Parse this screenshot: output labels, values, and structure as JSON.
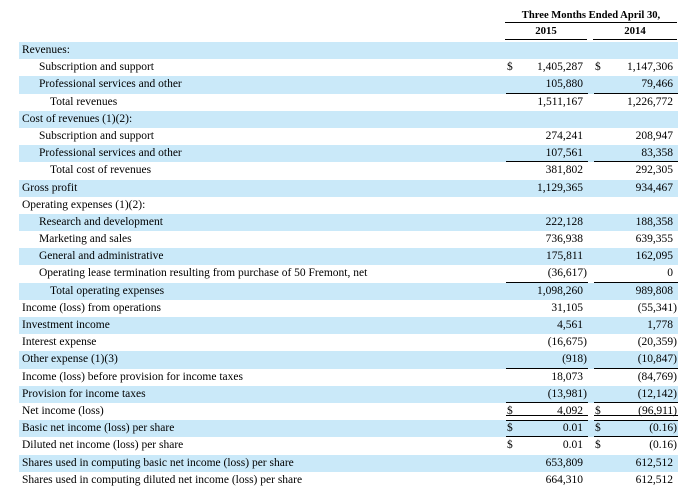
{
  "table": {
    "period_header": "Three Months Ended April 30,",
    "year_columns": [
      "2015",
      "2014"
    ],
    "dollar_sign": "$",
    "highlight_color": "#cae9f9",
    "rule_color": "#000000",
    "rows": [
      {
        "label": "Revenues:",
        "indent": 0,
        "shaded": true,
        "dollar": false,
        "v2015": "",
        "v2014": "",
        "underline": "none"
      },
      {
        "label": "Subscription and support",
        "indent": 1,
        "shaded": false,
        "dollar": true,
        "v2015": "1,405,287",
        "v2014": "1,147,306",
        "underline": "none"
      },
      {
        "label": "Professional services and other",
        "indent": 1,
        "shaded": true,
        "dollar": false,
        "v2015": "105,880",
        "v2014": "79,466",
        "underline": "single"
      },
      {
        "label": "Total revenues",
        "indent": 2,
        "shaded": false,
        "dollar": false,
        "v2015": "1,511,167",
        "v2014": "1,226,772",
        "underline": "none"
      },
      {
        "label": "Cost of revenues (1)(2):",
        "indent": 0,
        "shaded": true,
        "dollar": false,
        "v2015": "",
        "v2014": "",
        "underline": "none"
      },
      {
        "label": "Subscription and support",
        "indent": 1,
        "shaded": false,
        "dollar": false,
        "v2015": "274,241",
        "v2014": "208,947",
        "underline": "none"
      },
      {
        "label": "Professional services and other",
        "indent": 1,
        "shaded": true,
        "dollar": false,
        "v2015": "107,561",
        "v2014": "83,358",
        "underline": "single"
      },
      {
        "label": "Total cost of revenues",
        "indent": 2,
        "shaded": false,
        "dollar": false,
        "v2015": "381,802",
        "v2014": "292,305",
        "underline": "none"
      },
      {
        "label": "Gross profit",
        "indent": 0,
        "shaded": true,
        "dollar": false,
        "v2015": "1,129,365",
        "v2014": "934,467",
        "underline": "none"
      },
      {
        "label": "Operating expenses (1)(2):",
        "indent": 0,
        "shaded": false,
        "dollar": false,
        "v2015": "",
        "v2014": "",
        "underline": "none"
      },
      {
        "label": "Research and development",
        "indent": 1,
        "shaded": true,
        "dollar": false,
        "v2015": "222,128",
        "v2014": "188,358",
        "underline": "none"
      },
      {
        "label": "Marketing and sales",
        "indent": 1,
        "shaded": false,
        "dollar": false,
        "v2015": "736,938",
        "v2014": "639,355",
        "underline": "none"
      },
      {
        "label": "General and administrative",
        "indent": 1,
        "shaded": true,
        "dollar": false,
        "v2015": "175,811",
        "v2014": "162,095",
        "underline": "none"
      },
      {
        "label": "Operating lease termination resulting from purchase of 50 Fremont, net",
        "indent": 1,
        "shaded": false,
        "dollar": false,
        "v2015": "(36,617)",
        "v2014": "0",
        "underline": "single"
      },
      {
        "label": "Total operating expenses",
        "indent": 2,
        "shaded": true,
        "dollar": false,
        "v2015": "1,098,260",
        "v2014": "989,808",
        "underline": "none"
      },
      {
        "label": "Income (loss) from operations",
        "indent": 0,
        "shaded": false,
        "dollar": false,
        "v2015": "31,105",
        "v2014": "(55,341)",
        "underline": "none"
      },
      {
        "label": "Investment income",
        "indent": 0,
        "shaded": true,
        "dollar": false,
        "v2015": "4,561",
        "v2014": "1,778",
        "underline": "none"
      },
      {
        "label": "Interest expense",
        "indent": 0,
        "shaded": false,
        "dollar": false,
        "v2015": "(16,675)",
        "v2014": "(20,359)",
        "underline": "none"
      },
      {
        "label": "Other expense (1)(3)",
        "indent": 0,
        "shaded": true,
        "dollar": false,
        "v2015": "(918)",
        "v2014": "(10,847)",
        "underline": "single"
      },
      {
        "label": "Income (loss) before provision for income taxes",
        "indent": 0,
        "shaded": false,
        "dollar": false,
        "v2015": "18,073",
        "v2014": "(84,769)",
        "underline": "none"
      },
      {
        "label": "Provision for income taxes",
        "indent": 0,
        "shaded": true,
        "dollar": false,
        "v2015": "(13,981)",
        "v2014": "(12,142)",
        "underline": "single"
      },
      {
        "label": "Net income (loss)",
        "indent": 0,
        "shaded": false,
        "dollar": true,
        "v2015": "4,092",
        "v2014": "(96,911)",
        "underline": "double"
      },
      {
        "label": "Basic net income (loss) per share",
        "indent": 0,
        "shaded": true,
        "dollar": true,
        "v2015": "0.01",
        "v2014": "(0.16)",
        "underline": "single"
      },
      {
        "label": "Diluted net income (loss) per share",
        "indent": 0,
        "shaded": false,
        "dollar": true,
        "v2015": "0.01",
        "v2014": "(0.16)",
        "underline": "none"
      },
      {
        "label": "Shares used in computing basic net income (loss) per share",
        "indent": 0,
        "shaded": true,
        "dollar": false,
        "v2015": "653,809",
        "v2014": "612,512",
        "underline": "none"
      },
      {
        "label": "Shares used in computing diluted net income (loss) per share",
        "indent": 0,
        "shaded": false,
        "dollar": false,
        "v2015": "664,310",
        "v2014": "612,512",
        "underline": "none"
      }
    ]
  }
}
